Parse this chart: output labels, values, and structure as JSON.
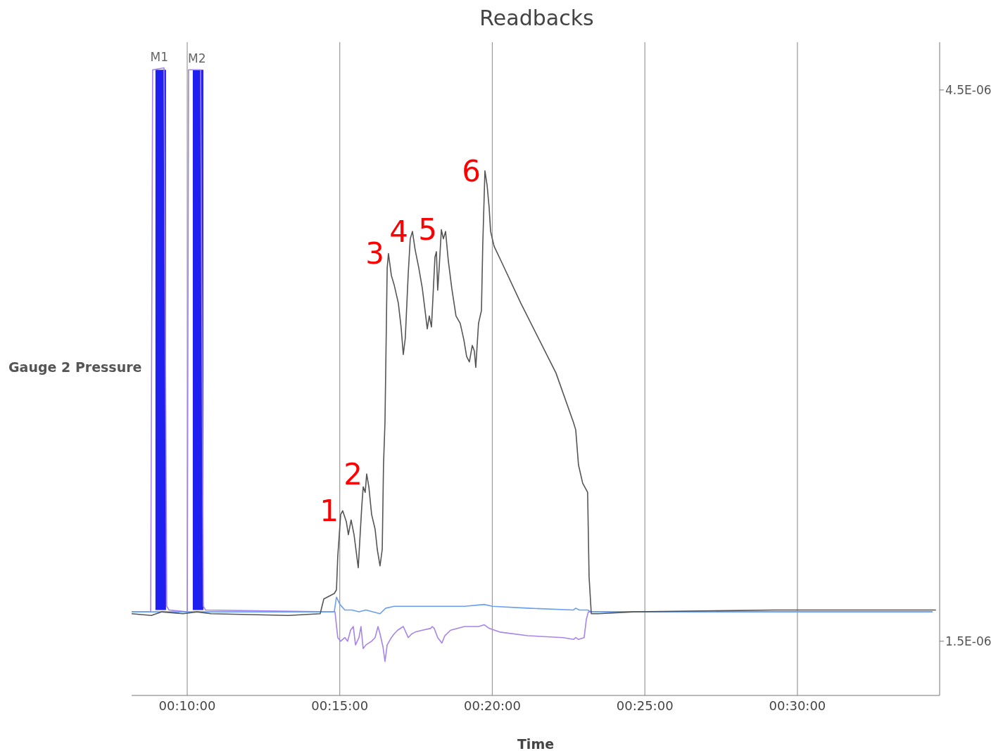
{
  "chart_data": {
    "type": "line",
    "title": "Readbacks",
    "xlabel": "Time",
    "ylabel": "Gauge 2 Pressure",
    "xlim": [
      0.1363,
      0.5777
    ],
    "xticks": [
      {
        "value": 0.166667,
        "label": "00:10:00"
      },
      {
        "value": 0.25,
        "label": "00:15:00"
      },
      {
        "value": 0.333333,
        "label": "00:20:00"
      },
      {
        "value": 0.416667,
        "label": "00:25:00"
      },
      {
        "value": 0.5,
        "label": "00:30:00"
      }
    ],
    "ylim": [
      1.205e-06,
      4.76e-06
    ],
    "yticks": [
      {
        "value": 1.5e-06,
        "label": "1.5E-06"
      },
      {
        "value": 4.5e-06,
        "label": "4.5E-06"
      }
    ],
    "grid": "x",
    "marker": "none",
    "series": [
      {
        "type": "bar",
        "color": "#1f1ff0",
        "x": [
          0.1522,
          0.1726
        ],
        "base": [
          1.67e-06,
          1.67e-06
        ],
        "values": [
          2.94e-06,
          2.94e-06
        ]
      },
      {
        "color": "#a784e8",
        "x": [
          0.1363,
          0.1467,
          0.1478,
          0.154,
          0.1555,
          0.1567,
          0.1667,
          0.1674,
          0.174,
          0.1755,
          0.1767,
          0.2451,
          0.2474,
          0.2489,
          0.2505,
          0.2528,
          0.2543,
          0.2559,
          0.2574,
          0.2586,
          0.2605,
          0.2616,
          0.2628,
          0.2643,
          0.2674,
          0.2693,
          0.2709,
          0.272,
          0.2736,
          0.2747,
          0.2759,
          0.2782,
          0.2797,
          0.2816,
          0.2847,
          0.2874,
          0.2893,
          0.2912,
          0.2951,
          0.2997,
          0.3005,
          0.3016,
          0.3035,
          0.3058,
          0.3074,
          0.3105,
          0.3181,
          0.3258,
          0.3289,
          0.3316,
          0.3374,
          0.3527,
          0.372,
          0.3777,
          0.3789,
          0.3804,
          0.3835,
          0.3847,
          0.3858,
          0.5738
        ],
        "values": [
          1.66e-06,
          1.66e-06,
          4.61e-06,
          4.62e-06,
          1.69e-06,
          1.67e-06,
          1.66e-06,
          4.61e-06,
          4.61e-06,
          1.69e-06,
          1.67e-06,
          1.66e-06,
          1.66e-06,
          1.52e-06,
          1.5e-06,
          1.52e-06,
          1.5e-06,
          1.56e-06,
          1.58e-06,
          1.48e-06,
          1.52e-06,
          1.58e-06,
          1.46e-06,
          1.48e-06,
          1.5e-06,
          1.52e-06,
          1.58e-06,
          1.54e-06,
          1.47e-06,
          1.39e-06,
          1.48e-06,
          1.52e-06,
          1.54e-06,
          1.56e-06,
          1.58e-06,
          1.52e-06,
          1.54e-06,
          1.55e-06,
          1.56e-06,
          1.57e-06,
          1.58e-06,
          1.57e-06,
          1.52e-06,
          1.49e-06,
          1.53e-06,
          1.56e-06,
          1.58e-06,
          1.58e-06,
          1.59e-06,
          1.57e-06,
          1.55e-06,
          1.53e-06,
          1.52e-06,
          1.51e-06,
          1.52e-06,
          1.51e-06,
          1.52e-06,
          1.62e-06,
          1.66e-06,
          1.66e-06
        ]
      },
      {
        "color": "#6a9ff0",
        "x": [
          0.1363,
          0.247,
          0.2482,
          0.2501,
          0.2528,
          0.2567,
          0.2605,
          0.2643,
          0.272,
          0.2751,
          0.2797,
          0.2951,
          0.3181,
          0.3289,
          0.3335,
          0.3527,
          0.3777,
          0.3789,
          0.3808,
          0.3854,
          0.3874,
          0.5738
        ],
        "values": [
          1.66e-06,
          1.66e-06,
          1.74e-06,
          1.7e-06,
          1.67e-06,
          1.67e-06,
          1.66e-06,
          1.67e-06,
          1.65e-06,
          1.68e-06,
          1.69e-06,
          1.69e-06,
          1.69e-06,
          1.7e-06,
          1.69e-06,
          1.68e-06,
          1.67e-06,
          1.68e-06,
          1.67e-06,
          1.67e-06,
          1.66e-06,
          1.66e-06
        ]
      },
      {
        "color": "#555555",
        "x": [
          0.1363,
          0.1471,
          0.1528,
          0.1644,
          0.172,
          0.1797,
          0.222,
          0.2393,
          0.2413,
          0.247,
          0.2482,
          0.2489,
          0.2505,
          0.2516,
          0.2536,
          0.2547,
          0.2562,
          0.2578,
          0.2601,
          0.262,
          0.2628,
          0.2639,
          0.2647,
          0.2659,
          0.2674,
          0.2693,
          0.2705,
          0.272,
          0.2732,
          0.2739,
          0.2747,
          0.2759,
          0.2766,
          0.2782,
          0.2797,
          0.282,
          0.2835,
          0.2847,
          0.2858,
          0.2874,
          0.2885,
          0.2897,
          0.2912,
          0.2932,
          0.2951,
          0.2966,
          0.2978,
          0.2989,
          0.3001,
          0.302,
          0.3028,
          0.3035,
          0.3043,
          0.3055,
          0.3066,
          0.3078,
          0.3093,
          0.3112,
          0.3135,
          0.3158,
          0.3178,
          0.3193,
          0.3208,
          0.3224,
          0.3235,
          0.3243,
          0.3258,
          0.3274,
          0.3281,
          0.3293,
          0.3305,
          0.3316,
          0.3324,
          0.3343,
          0.3381,
          0.3489,
          0.3681,
          0.3777,
          0.3789,
          0.3804,
          0.3827,
          0.3854,
          0.3862,
          0.3874,
          0.3912,
          0.4104,
          0.4873,
          0.5258,
          0.5757
        ],
        "values": [
          1.65e-06,
          1.64e-06,
          1.66e-06,
          1.65e-06,
          1.66e-06,
          1.65e-06,
          1.64e-06,
          1.65e-06,
          1.73e-06,
          1.76e-06,
          1.78e-06,
          1.96e-06,
          2.19e-06,
          2.21e-06,
          2.15e-06,
          2.08e-06,
          2.16e-06,
          2.08e-06,
          1.9e-06,
          2.23e-06,
          2.34e-06,
          2.31e-06,
          2.41e-06,
          2.34e-06,
          2.19e-06,
          2.11e-06,
          2e-06,
          1.91e-06,
          2e-06,
          2.46e-06,
          2.69e-06,
          3.53e-06,
          3.61e-06,
          3.49e-06,
          3.44e-06,
          3.34e-06,
          3.21e-06,
          3.06e-06,
          3.15e-06,
          3.5e-06,
          3.69e-06,
          3.73e-06,
          3.63e-06,
          3.53e-06,
          3.42e-06,
          3.3e-06,
          3.2e-06,
          3.27e-06,
          3.21e-06,
          3.59e-06,
          3.62e-06,
          3.41e-06,
          3.53e-06,
          3.74e-06,
          3.69e-06,
          3.73e-06,
          3.57e-06,
          3.42e-06,
          3.27e-06,
          3.23e-06,
          3.14e-06,
          3.05e-06,
          3.02e-06,
          3.11e-06,
          3.08e-06,
          2.99e-06,
          3.23e-06,
          3.3e-06,
          3.65e-06,
          4.06e-06,
          3.98e-06,
          3.86e-06,
          3.73e-06,
          3.65e-06,
          3.57e-06,
          3.34e-06,
          2.96e-06,
          2.69e-06,
          2.65e-06,
          2.46e-06,
          2.36e-06,
          2.31e-06,
          1.85e-06,
          1.65e-06,
          1.65e-06,
          1.66e-06,
          1.67e-06,
          1.67e-06,
          1.67e-06
        ]
      }
    ],
    "annotations": [
      {
        "text": "M1",
        "x": 0.1514,
        "y": 4.62e-06
      },
      {
        "text": "M2",
        "x": 0.172,
        "y": 4.61e-06
      },
      {
        "text": "1",
        "x": 0.2516,
        "y": 2.21e-06
      },
      {
        "text": "2",
        "x": 0.2647,
        "y": 2.41e-06
      },
      {
        "text": "3",
        "x": 0.2766,
        "y": 3.61e-06
      },
      {
        "text": "4",
        "x": 0.2897,
        "y": 3.73e-06
      },
      {
        "text": "5",
        "x": 0.3055,
        "y": 3.74e-06
      },
      {
        "text": "6",
        "x": 0.3293,
        "y": 4.06e-06
      }
    ]
  }
}
